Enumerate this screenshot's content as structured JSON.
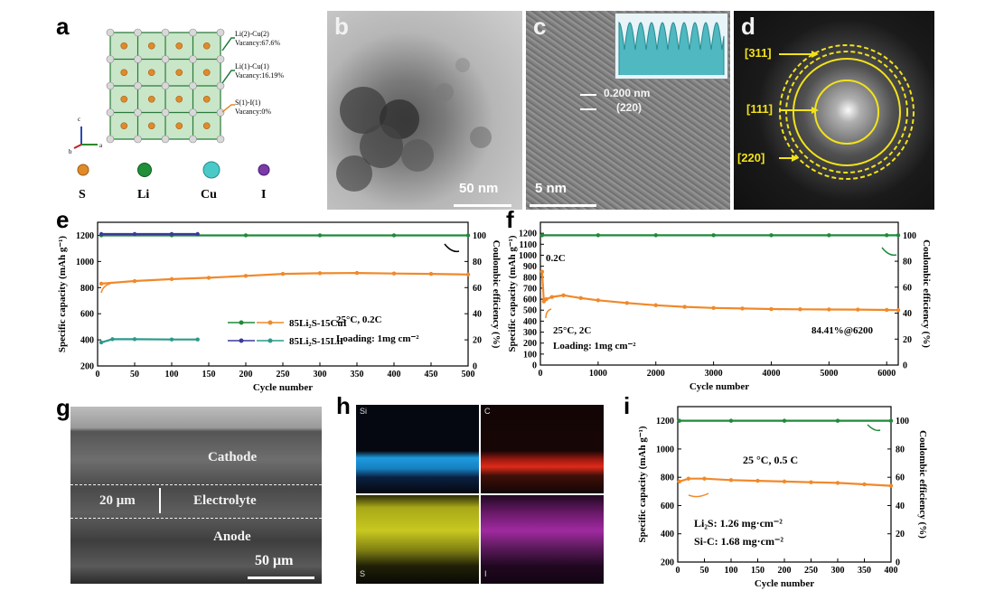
{
  "panel_a": {
    "label": "a",
    "sites": [
      {
        "site": "Li(2)-Cu(2)",
        "vacancy": "Vacancy:67.6%"
      },
      {
        "site": "Li(1)-Cu(1)",
        "vacancy": "Vacancy:16.19%"
      },
      {
        "site": "S(1)-I(1)",
        "vacancy": "Vacancy:0%"
      }
    ],
    "legend": [
      {
        "symbol": "S",
        "color": "#e08a2a"
      },
      {
        "symbol": "Li",
        "color": "#1f8f3a"
      },
      {
        "symbol": "Cu",
        "color": "#4ac9c9"
      },
      {
        "symbol": "I",
        "color": "#7a3aa8"
      }
    ],
    "axes": [
      "c",
      "a",
      "b"
    ]
  },
  "panel_b": {
    "label": "b",
    "scale_bar": "50 nm"
  },
  "panel_c": {
    "label": "c",
    "d_spacing": "0.200 nm",
    "plane": "(220)",
    "scale_bar": "5 nm"
  },
  "panel_d": {
    "label": "d",
    "rings": [
      "[311]",
      "[111]",
      "[220]"
    ]
  },
  "panel_e": {
    "label": "e",
    "annotation_1": "25°C,  0.2C",
    "annotation_2": "Loading: 1mg cm⁻²",
    "legend": [
      "85Li₂S-15CuI",
      "85Li₂S-15LiI"
    ]
  },
  "panel_f": {
    "label": "f",
    "rate_tag": "0.2C",
    "annotation_1": "25°C,  2C",
    "annotation_2": "Loading: 1mg cm⁻²",
    "retention": "84.41%@6200"
  },
  "panel_g": {
    "label": "g",
    "layers": [
      "Cathode",
      "Electrolyte",
      "Anode"
    ],
    "thickness": "20 μm",
    "scale_bar": "50 μm"
  },
  "panel_h": {
    "label": "h",
    "maps": [
      {
        "element": "Si",
        "color": "#1e9be0"
      },
      {
        "element": "C",
        "color": "#e02a1a"
      },
      {
        "element": "S",
        "color": "#c8c820"
      },
      {
        "element": "I",
        "color": "#a02aa0"
      }
    ]
  },
  "panel_i": {
    "label": "i",
    "annotation_1": "25 °C,   0.5 C",
    "annotation_2": "Li₂S: 1.26 mg·cm⁻²",
    "annotation_3": "Si-C: 1.68 mg·cm⁻²"
  },
  "chart_data": [
    {
      "panel": "e",
      "type": "line",
      "xlabel": "Cycle number",
      "ylabel": "Specific capacity (mAh g⁻¹)",
      "ylabel_right": "Coulombic efficiency (%)",
      "xlim": [
        0,
        500
      ],
      "ylim": [
        200,
        1300
      ],
      "ylim_right": [
        0,
        110
      ],
      "xticks": [
        0,
        50,
        100,
        150,
        200,
        250,
        300,
        350,
        400,
        450,
        500
      ],
      "yticks": [
        200,
        400,
        600,
        800,
        1000,
        1200
      ],
      "yticks_right": [
        0,
        20,
        40,
        60,
        80,
        100
      ],
      "colors": {
        "cui_capacity": "#f0892a",
        "cui_ce": "#1f8a3a",
        "lii_capacity": "#2a9a8a",
        "lii_ce": "#3a3a9a"
      },
      "series": [
        {
          "name": "85Li₂S-15CuI",
          "axis": "left",
          "x": [
            5,
            50,
            100,
            150,
            200,
            250,
            300,
            350,
            400,
            450,
            500
          ],
          "y": [
            830,
            850,
            865,
            875,
            890,
            905,
            910,
            912,
            908,
            905,
            900
          ]
        },
        {
          "name": "85Li₂S-15CuI",
          "axis": "right",
          "x": [
            5,
            100,
            200,
            300,
            400,
            500
          ],
          "y": [
            100,
            100,
            100,
            100,
            100,
            100
          ]
        },
        {
          "name": "85Li₂S-15LiI",
          "axis": "left",
          "x": [
            5,
            20,
            50,
            100,
            135
          ],
          "y": [
            380,
            405,
            405,
            403,
            403
          ]
        },
        {
          "name": "85Li₂S-15LiI",
          "axis": "right",
          "x": [
            5,
            50,
            100,
            135
          ],
          "y": [
            101,
            101,
            101,
            101
          ]
        }
      ]
    },
    {
      "panel": "f",
      "type": "line",
      "xlabel": "Cycle number",
      "ylabel": "Specific capacity (mAh g⁻¹)",
      "ylabel_right": "Coulombic efficiency (%)",
      "xlim": [
        0,
        6200
      ],
      "ylim": [
        0,
        1300
      ],
      "ylim_right": [
        0,
        110
      ],
      "xticks": [
        0,
        1000,
        2000,
        3000,
        4000,
        5000,
        6000
      ],
      "yticks": [
        0,
        100,
        200,
        300,
        400,
        500,
        600,
        700,
        800,
        900,
        1000,
        1100,
        1200
      ],
      "yticks_right": [
        0,
        20,
        40,
        60,
        80,
        100
      ],
      "colors": {
        "capacity": "#f0892a",
        "ce": "#1f8a3a"
      },
      "series": [
        {
          "axis": "left",
          "x": [
            30,
            60,
            100,
            200,
            400,
            700,
            1000,
            1500,
            2000,
            2500,
            3000,
            3500,
            4000,
            4500,
            5000,
            5500,
            6000,
            6200
          ],
          "y": [
            850,
            580,
            600,
            620,
            635,
            610,
            590,
            565,
            545,
            530,
            520,
            515,
            510,
            508,
            506,
            505,
            502,
            500
          ]
        },
        {
          "axis": "right",
          "x": [
            30,
            1000,
            2000,
            3000,
            4000,
            5000,
            6000,
            6200
          ],
          "y": [
            100,
            100,
            100,
            100,
            100,
            100,
            100,
            100
          ]
        }
      ]
    },
    {
      "panel": "i",
      "type": "line",
      "xlabel": "Cycle number",
      "ylabel": "Specific capacity (mAh g⁻¹)",
      "ylabel_right": "Coulombic efficiency (%)",
      "xlim": [
        0,
        400
      ],
      "ylim": [
        200,
        1300
      ],
      "ylim_right": [
        0,
        110
      ],
      "xticks": [
        0,
        50,
        100,
        150,
        200,
        250,
        300,
        350,
        400
      ],
      "yticks": [
        200,
        400,
        600,
        800,
        1000,
        1200
      ],
      "yticks_right": [
        0,
        20,
        40,
        60,
        80,
        100
      ],
      "colors": {
        "capacity": "#f0892a",
        "ce": "#1f8a3a"
      },
      "series": [
        {
          "axis": "left",
          "x": [
            3,
            20,
            50,
            100,
            150,
            200,
            250,
            300,
            350,
            400
          ],
          "y": [
            770,
            790,
            790,
            780,
            775,
            770,
            765,
            760,
            750,
            740
          ]
        },
        {
          "axis": "right",
          "x": [
            3,
            100,
            200,
            300,
            400
          ],
          "y": [
            100,
            100,
            100,
            100,
            100
          ]
        }
      ]
    }
  ]
}
